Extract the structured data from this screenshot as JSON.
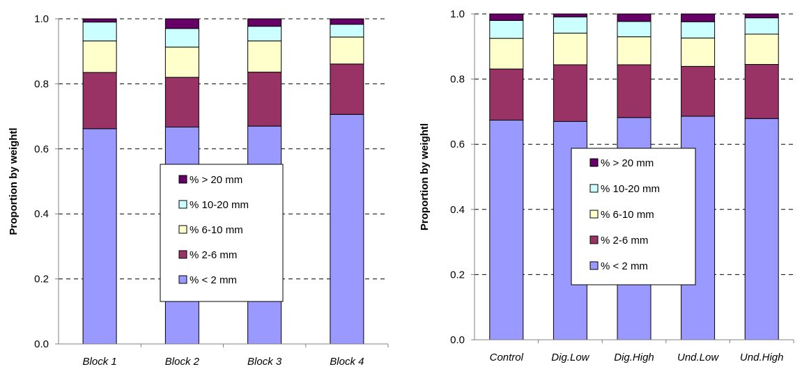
{
  "colors": {
    "lt2": "#9999ff",
    "2to6": "#993366",
    "6to10": "#ffffcc",
    "10to20": "#ccffff",
    "gt20": "#660066",
    "grid": "#000000",
    "axis": "#808080"
  },
  "chart_data": [
    {
      "type": "bar",
      "stacked": true,
      "categories": [
        "Block 1",
        "Block 2",
        "Block 3",
        "Block 4"
      ],
      "ylabel": "Proportion by weightl",
      "ylim": [
        0,
        1.0
      ],
      "yticks": [
        "0.0",
        "0.2",
        "0.4",
        "0.6",
        "0.8",
        "1.0"
      ],
      "grid": "horizontal dashed",
      "legend_position": "center",
      "series": [
        {
          "name": "% < 2 mm",
          "color_key": "lt2",
          "values": [
            0.662,
            0.667,
            0.67,
            0.706
          ]
        },
        {
          "name": "% 2-6 mm",
          "color_key": "2to6",
          "values": [
            0.173,
            0.153,
            0.166,
            0.155
          ]
        },
        {
          "name": "% 6-10 mm",
          "color_key": "6to10",
          "values": [
            0.097,
            0.093,
            0.096,
            0.083
          ]
        },
        {
          "name": "% 10-20 mm",
          "color_key": "10to20",
          "values": [
            0.058,
            0.057,
            0.045,
            0.039
          ]
        },
        {
          "name": "% > 20 mm",
          "color_key": "gt20",
          "values": [
            0.01,
            0.03,
            0.023,
            0.017
          ]
        }
      ],
      "legend_order": [
        4,
        3,
        2,
        1,
        0
      ]
    },
    {
      "type": "bar",
      "stacked": true,
      "categories": [
        "Control",
        "Dig.Low",
        "Dig.High",
        "Und.Low",
        "Und.High"
      ],
      "ylabel": "Proportion by weightl",
      "ylim": [
        0,
        1.0
      ],
      "yticks": [
        "0.0",
        "0.2",
        "0.4",
        "0.6",
        "0.8",
        "1.0"
      ],
      "grid": "horizontal dashed",
      "legend_position": "center",
      "series": [
        {
          "name": "% < 2 mm",
          "color_key": "lt2",
          "values": [
            0.674,
            0.67,
            0.682,
            0.686,
            0.679
          ]
        },
        {
          "name": "% 2-6 mm",
          "color_key": "2to6",
          "values": [
            0.157,
            0.174,
            0.162,
            0.153,
            0.166
          ]
        },
        {
          "name": "% 6-10 mm",
          "color_key": "6to10",
          "values": [
            0.094,
            0.097,
            0.086,
            0.087,
            0.093
          ]
        },
        {
          "name": "% 10-20 mm",
          "color_key": "10to20",
          "values": [
            0.055,
            0.05,
            0.047,
            0.05,
            0.05
          ]
        },
        {
          "name": "% > 20 mm",
          "color_key": "gt20",
          "values": [
            0.02,
            0.009,
            0.023,
            0.024,
            0.012
          ]
        }
      ],
      "legend_order": [
        4,
        3,
        2,
        1,
        0
      ]
    }
  ]
}
